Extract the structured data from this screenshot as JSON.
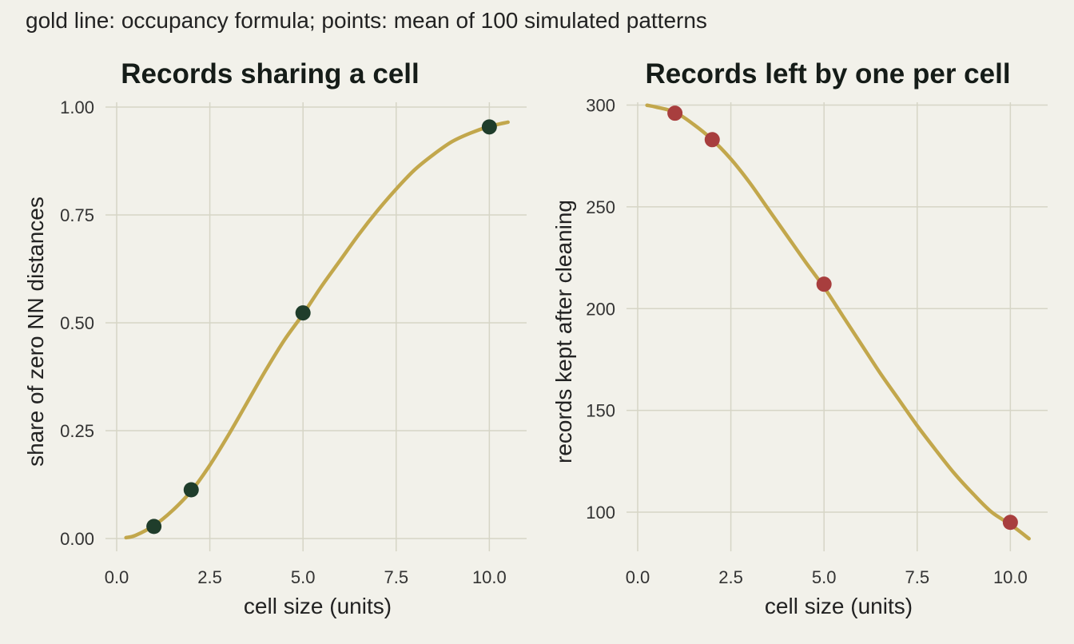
{
  "subtitle": "gold line: occupancy formula; points: mean of 100 simulated patterns",
  "colors": {
    "background": "#f2f1ea",
    "grid": "#d6d5c6",
    "line": "#c2a74c",
    "points_left": "#1f3d2b",
    "points_right": "#a83e3e"
  },
  "chart_data": [
    {
      "type": "line",
      "title": "Records sharing a cell",
      "xlabel": "cell size (units)",
      "ylabel": "share of zero NN distances",
      "xlim": [
        0,
        11
      ],
      "ylim": [
        0,
        1
      ],
      "x_ticks": [
        0.0,
        2.5,
        5.0,
        7.5,
        10.0
      ],
      "x_tick_labels": [
        "0.0",
        "2.5",
        "5.0",
        "7.5",
        "10.0"
      ],
      "y_ticks": [
        0.0,
        0.25,
        0.5,
        0.75,
        1.0
      ],
      "y_tick_labels": [
        "0.00",
        "0.25",
        "0.50",
        "0.75",
        "1.00"
      ],
      "grid": true,
      "line": {
        "x": [
          0.25,
          0.5,
          1.0,
          1.5,
          2.0,
          2.5,
          3.0,
          3.5,
          4.0,
          4.5,
          5.0,
          5.5,
          6.0,
          6.5,
          7.0,
          7.5,
          8.0,
          8.5,
          9.0,
          9.5,
          10.0,
          10.5
        ],
        "y": [
          0.002,
          0.007,
          0.03,
          0.065,
          0.11,
          0.17,
          0.24,
          0.315,
          0.39,
          0.46,
          0.52,
          0.585,
          0.645,
          0.705,
          0.76,
          0.81,
          0.855,
          0.89,
          0.92,
          0.94,
          0.955,
          0.965
        ]
      },
      "points": {
        "x": [
          1,
          2,
          5,
          10
        ],
        "y": [
          0.028,
          0.113,
          0.523,
          0.954
        ]
      }
    },
    {
      "type": "line",
      "title": "Records left by one per cell",
      "xlabel": "cell size (units)",
      "ylabel": "records kept after cleaning",
      "xlim": [
        0,
        11
      ],
      "ylim": [
        80,
        310
      ],
      "x_ticks": [
        0.0,
        2.5,
        5.0,
        7.5,
        10.0
      ],
      "x_tick_labels": [
        "0.0",
        "2.5",
        "5.0",
        "7.5",
        "10.0"
      ],
      "y_ticks": [
        100,
        150,
        200,
        250,
        300
      ],
      "y_tick_labels": [
        "100",
        "150",
        "200",
        "250",
        "300"
      ],
      "grid": true,
      "line": {
        "x": [
          0.25,
          0.5,
          1.0,
          1.5,
          2.0,
          2.5,
          3.0,
          3.5,
          4.0,
          4.5,
          5.0,
          5.5,
          6.0,
          6.5,
          7.0,
          7.5,
          8.0,
          8.5,
          9.0,
          9.5,
          10.0,
          10.5
        ],
        "y": [
          299.9,
          299,
          296.5,
          290.5,
          283,
          273.5,
          262,
          249,
          236,
          223,
          210.5,
          196.5,
          182.5,
          168.5,
          155.5,
          142.5,
          130.5,
          119,
          109,
          100,
          94,
          87
        ]
      },
      "points": {
        "x": [
          1,
          2,
          5,
          10
        ],
        "y": [
          296,
          283,
          212,
          95
        ]
      }
    }
  ]
}
